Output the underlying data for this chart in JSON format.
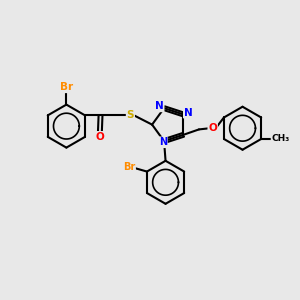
{
  "background_color": "#e8e8e8",
  "bond_color": "#000000",
  "bond_width": 1.5,
  "N_color": "#0000ff",
  "O_color": "#ff0000",
  "S_color": "#ccaa00",
  "Br_color": "#ff8c00",
  "C_color": "#000000",
  "figsize": [
    3.0,
    3.0
  ],
  "dpi": 100,
  "xlim": [
    0,
    10
  ],
  "ylim": [
    0,
    10
  ]
}
